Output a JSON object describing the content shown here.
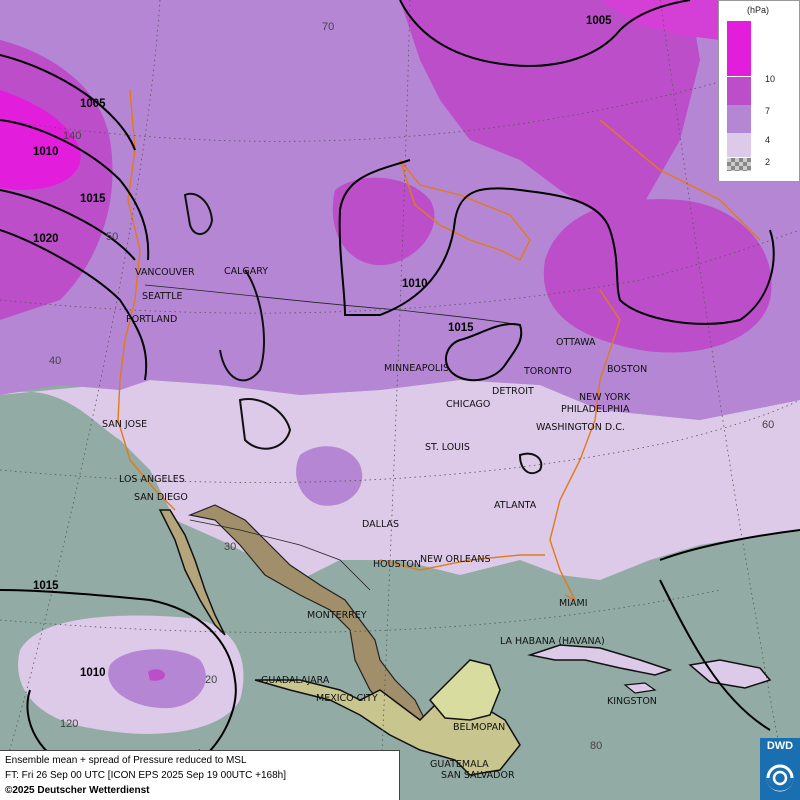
{
  "legend": {
    "unit": "(hPa)",
    "items": [
      {
        "label": "10",
        "color": "#e21ddc"
      },
      {
        "label": "7",
        "color": "#bc4fc9"
      },
      {
        "label": "4",
        "color": "#b586d4"
      },
      {
        "label": "2",
        "color": "#ddc9e8"
      }
    ]
  },
  "caption": {
    "line1": "Ensemble mean + spread of Pressure reduced to MSL",
    "line2": "FT: Fri 26 Sep 00 UTC [ICON EPS 2025 Sep 19 00UTC +168h]",
    "line3": "©2025 Deutscher Wetterdienst"
  },
  "logo": {
    "text": "DWD"
  },
  "isobars": {
    "l1005a": "1005",
    "l1005b": "1005",
    "l1010a": "1010",
    "l1015a": "1015",
    "l1020": "1020",
    "l1010b": "1010",
    "l1015b": "1015",
    "l1015c": "1015",
    "l1010c": "1010"
  },
  "graticule": {
    "lat70": "70",
    "lon140": "140",
    "lat50": "50",
    "lat40": "40",
    "lon60": "60",
    "lat30": "30",
    "lat20": "20",
    "lon120": "120",
    "lon80": "80"
  },
  "cities": {
    "vancouver": "VANCOUVER",
    "calgary": "CALGARY",
    "seattle": "SEATTLE",
    "portland": "PORTLAND",
    "minneapolis": "MINNEAPOLIS",
    "ottawa": "OTTAWA",
    "toronto": "TORONTO",
    "boston": "BOSTON",
    "detroit": "DETROIT",
    "chicago": "CHICAGO",
    "new_york": "NEW YORK",
    "philadelphia": "PHILADELPHIA",
    "washington": "WASHINGTON D.C.",
    "san_jose": "SAN JOSE",
    "st_louis": "ST. LOUIS",
    "los_angeles": "LOS ANGELES",
    "san_diego": "SAN DIEGO",
    "atlanta": "ATLANTA",
    "dallas": "DALLAS",
    "houston": "HOUSTON",
    "new_orleans": "NEW ORLEANS",
    "miami": "MIAMI",
    "monterrey": "MONTERREY",
    "havana": "LA HABANA (HAVANA)",
    "guadalajara": "GUADALAJARA",
    "mexico_city": "MEXICO CITY",
    "kingston": "KINGSTON",
    "belmopan": "BELMOPAN",
    "guatemala": "GUATEMALA",
    "san_salvador": "SAN SALVADOR"
  }
}
